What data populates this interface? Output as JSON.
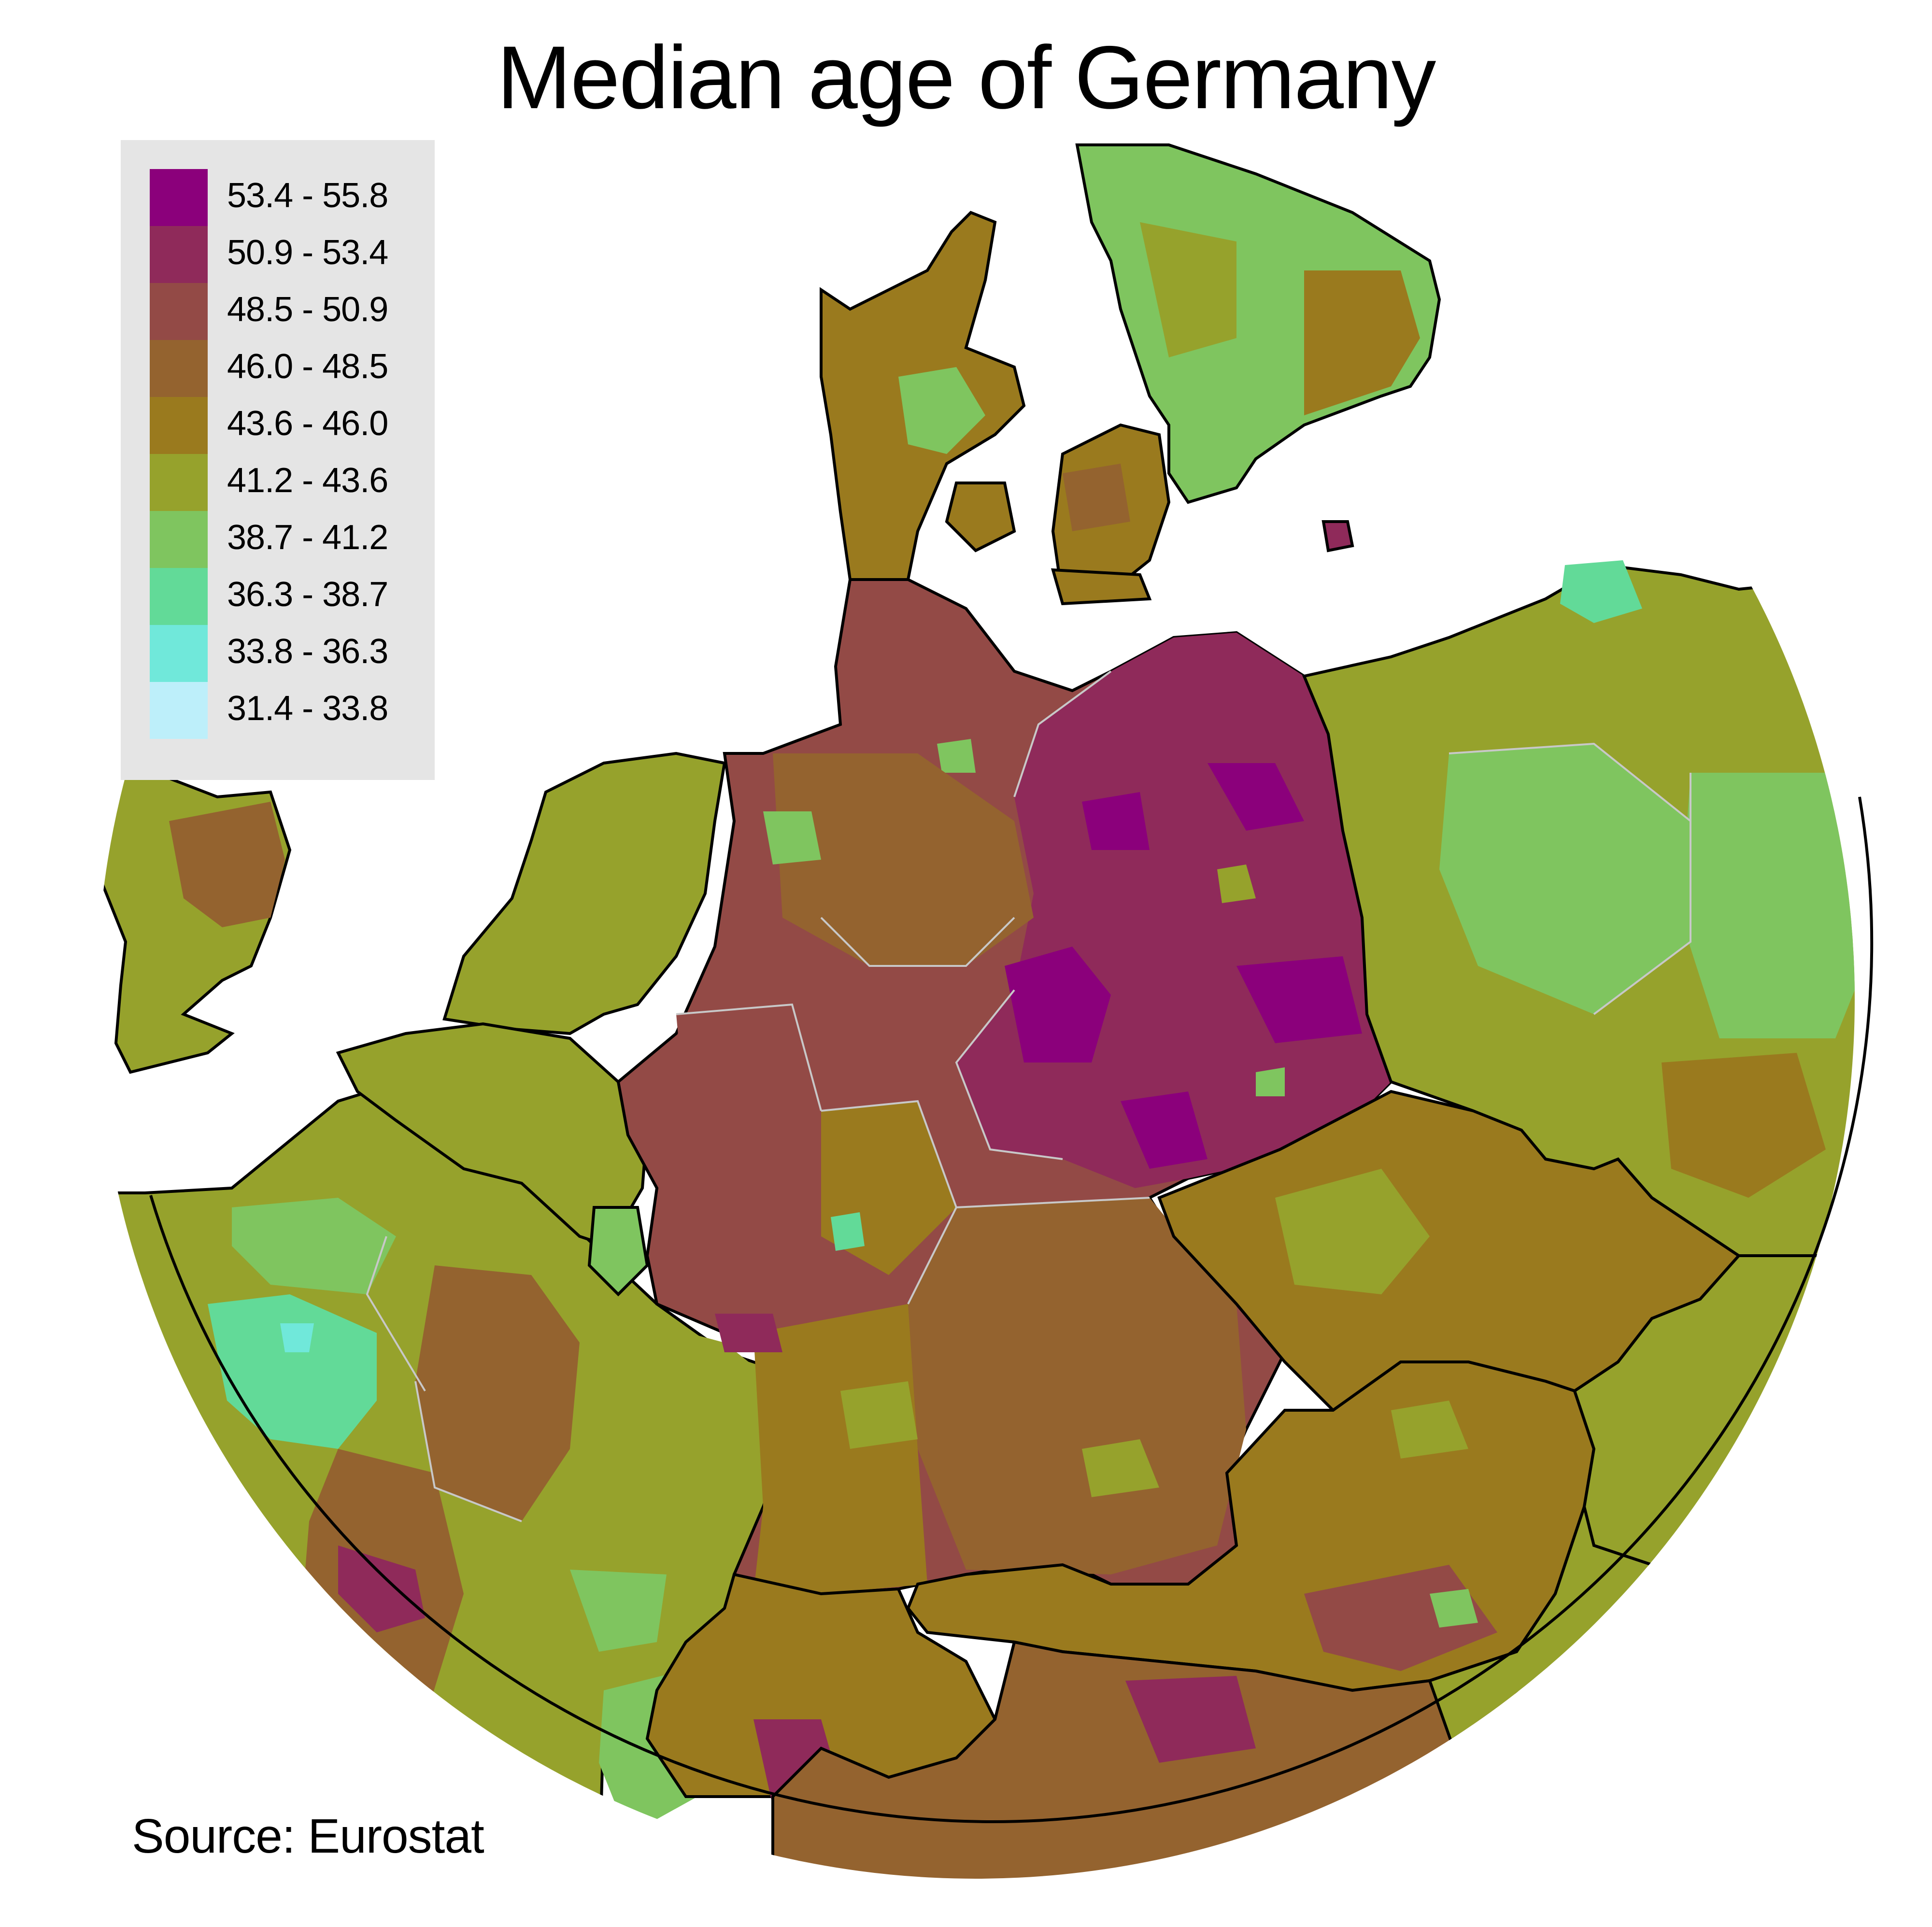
{
  "title": "Median age of Germany",
  "source": "Source: Eurostat",
  "legend": {
    "classes": [
      {
        "label": "53.4 - 55.8",
        "color": "#8b007b"
      },
      {
        "label": "50.9 - 53.4",
        "color": "#8f2a5a"
      },
      {
        "label": "48.5 - 50.9",
        "color": "#934a46"
      },
      {
        "label": "46.0 - 48.5",
        "color": "#94632f"
      },
      {
        "label": "43.6 - 46.0",
        "color": "#9a7a1e"
      },
      {
        "label": "41.2 - 43.6",
        "color": "#96a22c"
      },
      {
        "label": "38.7 - 41.2",
        "color": "#7fc55f"
      },
      {
        "label": "36.3 - 38.7",
        "color": "#62da98"
      },
      {
        "label": "33.8 - 36.3",
        "color": "#70e8da"
      },
      {
        "label": "31.4 - 33.8",
        "color": "#bdeffa"
      }
    ]
  },
  "colors": {
    "water": "#ffffff",
    "country_border": "#000000",
    "region_border": "#c8c8c8",
    "legend_background": "#e5e5e5"
  }
}
